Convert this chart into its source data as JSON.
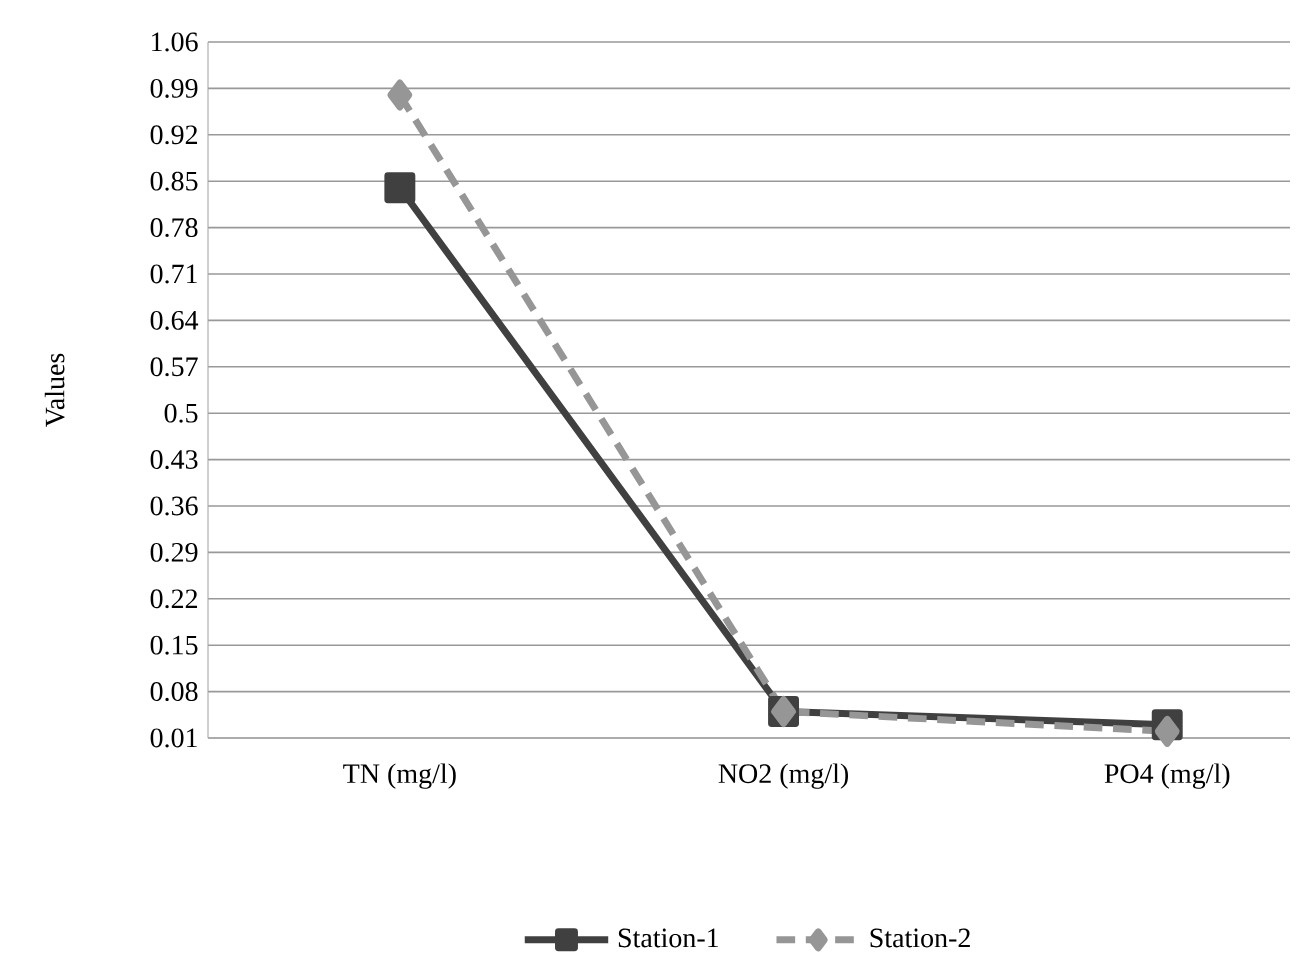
{
  "chart_data": {
    "type": "line",
    "ylabel": "Values",
    "categories": [
      "TN (mg/l)",
      "NO2 (mg/l)",
      "PO4 (mg/l)"
    ],
    "series": [
      {
        "name": "Station-1",
        "color": "#404040",
        "marker": "square",
        "line_style": "solid",
        "values": [
          0.84,
          0.05,
          0.03
        ]
      },
      {
        "name": "Station-2",
        "color": "#969696",
        "marker": "diamond",
        "line_style": "dashed",
        "values": [
          0.98,
          0.05,
          0.02
        ]
      }
    ],
    "ylim": [
      0.01,
      1.06
    ],
    "yticks": [
      0.01,
      0.08,
      0.15,
      0.22,
      0.29,
      0.36,
      0.43,
      0.5,
      0.57,
      0.64,
      0.71,
      0.78,
      0.85,
      0.92,
      0.99,
      1.06
    ],
    "grid": "y",
    "legend": "bottom"
  }
}
